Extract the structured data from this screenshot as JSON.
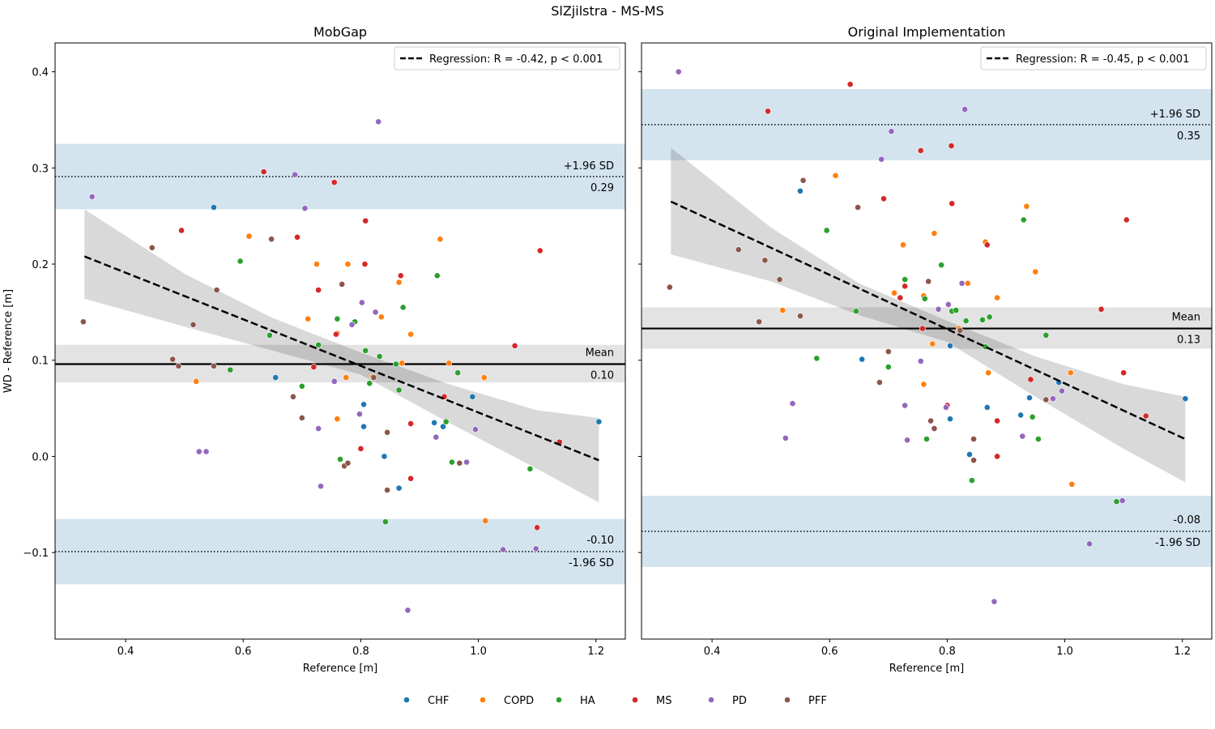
{
  "figure": {
    "suptitle": "SlZjilstra - MS-MS",
    "legend": {
      "placement": "bottom-center",
      "groups": [
        {
          "name": "CHF",
          "color": "#1f77b4"
        },
        {
          "name": "COPD",
          "color": "#ff7f0e"
        },
        {
          "name": "HA",
          "color": "#2ca02c"
        },
        {
          "name": "MS",
          "color": "#d62728"
        },
        {
          "name": "PD",
          "color": "#9467bd"
        },
        {
          "name": "PFF",
          "color": "#8c564b"
        }
      ]
    }
  },
  "chart_data": [
    {
      "type": "scatter",
      "title": "MobGap",
      "xlabel": "Reference [m]",
      "ylabel": "WD - Reference [m]",
      "xlim": [
        0.28,
        1.25
      ],
      "ylim": [
        -0.19,
        0.43
      ],
      "xticks": [
        0.4,
        0.6,
        0.8,
        1.0,
        1.2
      ],
      "yticks": [
        -0.1,
        0.0,
        0.1,
        0.2,
        0.3,
        0.4
      ],
      "xtick_labels": [
        "0.4",
        "0.6",
        "0.8",
        "1.0",
        "1.2"
      ],
      "ytick_labels": [
        "−0.1",
        "0.0",
        "0.1",
        "0.2",
        "0.3",
        "0.4"
      ],
      "grid": false,
      "mean": {
        "value": 0.096,
        "label": "Mean",
        "value_label": "0.10",
        "ci": [
          0.077,
          0.116
        ]
      },
      "upper_loa": {
        "value": 0.291,
        "label": "+1.96 SD",
        "value_label": "0.29",
        "ci": [
          0.257,
          0.325
        ]
      },
      "lower_loa": {
        "value": -0.099,
        "label": "-1.96 SD",
        "value_label": "-0.10",
        "ci": [
          -0.133,
          -0.065
        ]
      },
      "regression": {
        "legend_label": "Regression: R = -0.42, p < 0.001",
        "legend_placement": "top-right",
        "x_range": [
          0.33,
          1.205
        ],
        "y_range": [
          0.208,
          -0.004
        ],
        "band_upper": [
          [
            0.33,
            0.257
          ],
          [
            0.5,
            0.19
          ],
          [
            0.65,
            0.144
          ],
          [
            0.8,
            0.108
          ],
          [
            0.95,
            0.075
          ],
          [
            1.1,
            0.048
          ],
          [
            1.205,
            0.04
          ]
        ],
        "band_lower": [
          [
            0.33,
            0.164
          ],
          [
            0.5,
            0.135
          ],
          [
            0.65,
            0.11
          ],
          [
            0.8,
            0.085
          ],
          [
            0.95,
            0.035
          ],
          [
            1.1,
            -0.013
          ],
          [
            1.205,
            -0.048
          ]
        ]
      },
      "points": {
        "CHF": [
          [
            0.55,
            0.259
          ],
          [
            0.655,
            0.082
          ],
          [
            0.805,
            0.054
          ],
          [
            0.805,
            0.031
          ],
          [
            0.84,
            0.0
          ],
          [
            0.865,
            -0.033
          ],
          [
            0.925,
            0.035
          ],
          [
            0.94,
            0.031
          ],
          [
            0.99,
            0.062
          ],
          [
            1.205,
            0.036
          ]
        ],
        "COPD": [
          [
            0.52,
            0.078
          ],
          [
            0.61,
            0.229
          ],
          [
            0.71,
            0.143
          ],
          [
            0.725,
            0.2
          ],
          [
            0.76,
            0.128
          ],
          [
            0.76,
            0.039
          ],
          [
            0.775,
            0.082
          ],
          [
            0.778,
            0.2
          ],
          [
            0.82,
            0.083
          ],
          [
            0.835,
            0.145
          ],
          [
            0.865,
            0.181
          ],
          [
            0.87,
            0.097
          ],
          [
            0.885,
            0.127
          ],
          [
            0.935,
            0.226
          ],
          [
            0.95,
            0.097
          ],
          [
            1.01,
            0.082
          ],
          [
            1.012,
            -0.067
          ]
        ],
        "HA": [
          [
            0.578,
            0.09
          ],
          [
            0.595,
            0.203
          ],
          [
            0.645,
            0.126
          ],
          [
            0.7,
            0.073
          ],
          [
            0.728,
            0.116
          ],
          [
            0.76,
            0.143
          ],
          [
            0.765,
            -0.003
          ],
          [
            0.79,
            0.14
          ],
          [
            0.808,
            0.11
          ],
          [
            0.815,
            0.076
          ],
          [
            0.832,
            0.104
          ],
          [
            0.842,
            -0.068
          ],
          [
            0.86,
            0.096
          ],
          [
            0.865,
            0.069
          ],
          [
            0.872,
            0.155
          ],
          [
            0.93,
            0.188
          ],
          [
            0.945,
            0.036
          ],
          [
            0.955,
            -0.006
          ],
          [
            0.965,
            0.087
          ],
          [
            1.088,
            -0.013
          ]
        ],
        "MS": [
          [
            0.495,
            0.235
          ],
          [
            0.635,
            0.296
          ],
          [
            0.692,
            0.228
          ],
          [
            0.72,
            0.093
          ],
          [
            0.728,
            0.173
          ],
          [
            0.755,
            0.285
          ],
          [
            0.758,
            0.127
          ],
          [
            0.8,
            0.008
          ],
          [
            0.807,
            0.2
          ],
          [
            0.808,
            0.245
          ],
          [
            0.868,
            0.188
          ],
          [
            0.885,
            0.034
          ],
          [
            0.885,
            -0.023
          ],
          [
            0.942,
            0.062
          ],
          [
            1.062,
            0.115
          ],
          [
            1.1,
            -0.074
          ],
          [
            1.105,
            0.214
          ],
          [
            1.138,
            0.015
          ]
        ],
        "PD": [
          [
            0.343,
            0.27
          ],
          [
            0.525,
            0.005
          ],
          [
            0.537,
            0.005
          ],
          [
            0.688,
            0.293
          ],
          [
            0.705,
            0.258
          ],
          [
            0.728,
            0.029
          ],
          [
            0.732,
            -0.031
          ],
          [
            0.755,
            0.078
          ],
          [
            0.785,
            0.137
          ],
          [
            0.798,
            0.044
          ],
          [
            0.802,
            0.16
          ],
          [
            0.825,
            0.15
          ],
          [
            0.83,
            0.348
          ],
          [
            0.88,
            -0.16
          ],
          [
            0.928,
            0.02
          ],
          [
            0.98,
            -0.006
          ],
          [
            0.995,
            0.028
          ],
          [
            1.042,
            -0.097
          ],
          [
            1.098,
            -0.096
          ]
        ],
        "PFF": [
          [
            0.328,
            0.14
          ],
          [
            0.445,
            0.217
          ],
          [
            0.48,
            0.101
          ],
          [
            0.49,
            0.094
          ],
          [
            0.515,
            0.137
          ],
          [
            0.55,
            0.094
          ],
          [
            0.555,
            0.173
          ],
          [
            0.648,
            0.226
          ],
          [
            0.685,
            0.062
          ],
          [
            0.7,
            0.04
          ],
          [
            0.768,
            0.179
          ],
          [
            0.772,
            -0.01
          ],
          [
            0.778,
            -0.007
          ],
          [
            0.822,
            0.082
          ],
          [
            0.845,
            0.025
          ],
          [
            0.845,
            -0.035
          ],
          [
            0.968,
            -0.007
          ]
        ]
      }
    },
    {
      "type": "scatter",
      "title": "Original Implementation",
      "xlabel": "Reference [m]",
      "ylabel": "",
      "xlim": [
        0.28,
        1.25
      ],
      "ylim": [
        -0.19,
        0.43
      ],
      "xticks": [
        0.4,
        0.6,
        0.8,
        1.0,
        1.2
      ],
      "yticks": [
        -0.1,
        0.0,
        0.1,
        0.2,
        0.3,
        0.4
      ],
      "xtick_labels": [
        "0.4",
        "0.6",
        "0.8",
        "1.0",
        "1.2"
      ],
      "ytick_labels": [],
      "grid": false,
      "mean": {
        "value": 0.133,
        "label": "Mean",
        "value_label": "0.13",
        "ci": [
          0.112,
          0.155
        ]
      },
      "upper_loa": {
        "value": 0.345,
        "label": "+1.96 SD",
        "value_label": "0.35",
        "ci": [
          0.308,
          0.382
        ]
      },
      "lower_loa": {
        "value": -0.078,
        "label": "-1.96 SD",
        "value_label": "-0.08",
        "ci": [
          -0.115,
          -0.041
        ]
      },
      "regression": {
        "legend_label": "Regression: R = -0.45, p < 0.001",
        "legend_placement": "top-right",
        "x_range": [
          0.33,
          1.205
        ],
        "y_range": [
          0.265,
          0.018
        ],
        "band_upper": [
          [
            0.33,
            0.321
          ],
          [
            0.5,
            0.238
          ],
          [
            0.65,
            0.18
          ],
          [
            0.8,
            0.141
          ],
          [
            0.95,
            0.104
          ],
          [
            1.1,
            0.075
          ],
          [
            1.205,
            0.062
          ]
        ],
        "band_lower": [
          [
            0.33,
            0.21
          ],
          [
            0.5,
            0.182
          ],
          [
            0.65,
            0.147
          ],
          [
            0.8,
            0.119
          ],
          [
            0.95,
            0.062
          ],
          [
            1.1,
            0.008
          ],
          [
            1.205,
            -0.027
          ]
        ]
      },
      "points": {
        "CHF": [
          [
            0.55,
            0.276
          ],
          [
            0.655,
            0.101
          ],
          [
            0.805,
            0.115
          ],
          [
            0.805,
            0.039
          ],
          [
            0.838,
            0.002
          ],
          [
            0.868,
            0.051
          ],
          [
            0.925,
            0.043
          ],
          [
            0.94,
            0.061
          ],
          [
            0.99,
            0.077
          ],
          [
            1.205,
            0.06
          ]
        ],
        "COPD": [
          [
            0.52,
            0.152
          ],
          [
            0.61,
            0.292
          ],
          [
            0.71,
            0.17
          ],
          [
            0.725,
            0.22
          ],
          [
            0.76,
            0.167
          ],
          [
            0.76,
            0.075
          ],
          [
            0.775,
            0.117
          ],
          [
            0.778,
            0.232
          ],
          [
            0.82,
            0.133
          ],
          [
            0.835,
            0.18
          ],
          [
            0.865,
            0.223
          ],
          [
            0.87,
            0.087
          ],
          [
            0.885,
            0.165
          ],
          [
            0.935,
            0.26
          ],
          [
            0.95,
            0.192
          ],
          [
            1.01,
            0.087
          ],
          [
            1.012,
            -0.029
          ]
        ],
        "HA": [
          [
            0.578,
            0.102
          ],
          [
            0.595,
            0.235
          ],
          [
            0.645,
            0.151
          ],
          [
            0.7,
            0.093
          ],
          [
            0.728,
            0.184
          ],
          [
            0.762,
            0.164
          ],
          [
            0.765,
            0.018
          ],
          [
            0.79,
            0.199
          ],
          [
            0.808,
            0.151
          ],
          [
            0.815,
            0.152
          ],
          [
            0.832,
            0.141
          ],
          [
            0.842,
            -0.025
          ],
          [
            0.86,
            0.142
          ],
          [
            0.865,
            0.114
          ],
          [
            0.872,
            0.145
          ],
          [
            0.93,
            0.246
          ],
          [
            0.945,
            0.041
          ],
          [
            0.955,
            0.018
          ],
          [
            0.968,
            0.126
          ],
          [
            1.088,
            -0.047
          ]
        ],
        "MS": [
          [
            0.495,
            0.359
          ],
          [
            0.635,
            0.387
          ],
          [
            0.692,
            0.268
          ],
          [
            0.72,
            0.165
          ],
          [
            0.728,
            0.177
          ],
          [
            0.755,
            0.318
          ],
          [
            0.758,
            0.133
          ],
          [
            0.8,
            0.053
          ],
          [
            0.807,
            0.323
          ],
          [
            0.808,
            0.263
          ],
          [
            0.868,
            0.22
          ],
          [
            0.885,
            0.037
          ],
          [
            0.885,
            0.0
          ],
          [
            0.942,
            0.08
          ],
          [
            1.062,
            0.153
          ],
          [
            1.1,
            0.087
          ],
          [
            1.105,
            0.246
          ],
          [
            1.138,
            0.042
          ]
        ],
        "PD": [
          [
            0.343,
            0.4
          ],
          [
            0.525,
            0.019
          ],
          [
            0.537,
            0.055
          ],
          [
            0.688,
            0.309
          ],
          [
            0.705,
            0.338
          ],
          [
            0.728,
            0.053
          ],
          [
            0.732,
            0.017
          ],
          [
            0.755,
            0.099
          ],
          [
            0.785,
            0.153
          ],
          [
            0.798,
            0.051
          ],
          [
            0.802,
            0.158
          ],
          [
            0.825,
            0.18
          ],
          [
            0.83,
            0.361
          ],
          [
            0.88,
            -0.151
          ],
          [
            0.928,
            0.021
          ],
          [
            0.98,
            0.06
          ],
          [
            0.995,
            0.068
          ],
          [
            1.042,
            -0.091
          ],
          [
            1.098,
            -0.046
          ]
        ],
        "PFF": [
          [
            0.328,
            0.176
          ],
          [
            0.445,
            0.215
          ],
          [
            0.48,
            0.14
          ],
          [
            0.49,
            0.204
          ],
          [
            0.515,
            0.184
          ],
          [
            0.55,
            0.146
          ],
          [
            0.555,
            0.287
          ],
          [
            0.648,
            0.259
          ],
          [
            0.685,
            0.077
          ],
          [
            0.7,
            0.109
          ],
          [
            0.768,
            0.182
          ],
          [
            0.772,
            0.037
          ],
          [
            0.778,
            0.029
          ],
          [
            0.822,
            0.131
          ],
          [
            0.845,
            0.018
          ],
          [
            0.845,
            -0.004
          ],
          [
            0.968,
            0.059
          ]
        ]
      }
    }
  ]
}
